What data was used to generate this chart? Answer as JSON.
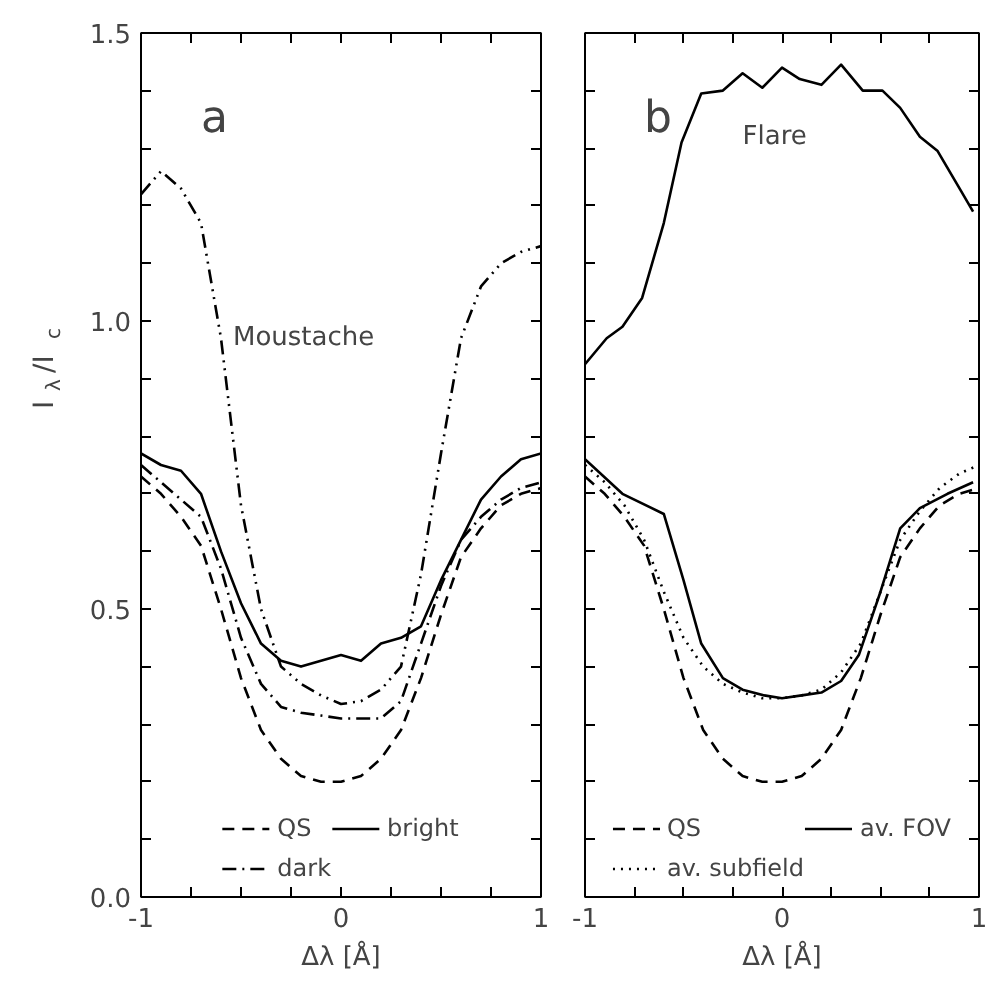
{
  "chart_data": [
    {
      "type": "line",
      "title": "a",
      "xlabel": "Δλ [Å]",
      "ylabel": "I$_{λ}$/I$_{c}$",
      "x": [
        -1,
        -0.9,
        -0.8,
        -0.7,
        -0.6,
        -0.5,
        -0.4,
        -0.3,
        -0.2,
        -0.1,
        0,
        0.1,
        0.2,
        0.3,
        0.4,
        0.5,
        0.6,
        0.7,
        0.8,
        0.9,
        1
      ],
      "xlim": [
        -1,
        1
      ],
      "ylim": [
        0,
        1.5
      ],
      "xticks": [
        -1,
        {
          "value": -0.75,
          "label": null
        },
        {
          "value": -0.5,
          "label": null
        },
        {
          "value": -0.25,
          "label": null
        },
        0,
        {
          "value": 0.25,
          "label": null
        },
        {
          "value": 0.5,
          "label": null
        },
        {
          "value": 0.75,
          "label": null
        },
        1
      ],
      "yticks": [
        {
          "value": 0,
          "label": "0.0"
        },
        {
          "value": 0.1,
          "label": null
        },
        {
          "value": 0.2,
          "label": null
        },
        {
          "value": 0.3,
          "label": null
        },
        {
          "value": 0.4,
          "label": null
        },
        0.5,
        {
          "value": 0.6,
          "label": null
        },
        {
          "value": 0.7,
          "label": null
        },
        {
          "value": 0.8,
          "label": null
        },
        {
          "value": 0.9,
          "label": null
        },
        {
          "value": 1,
          "label": "1.0"
        },
        {
          "value": 1.1,
          "label": null
        },
        {
          "value": 1.2,
          "label": null
        },
        {
          "value": 1.3,
          "label": null
        },
        {
          "value": 1.4,
          "label": null
        },
        1.5
      ],
      "legend": "bottom",
      "grid": false,
      "series": [
        {
          "name": "QS",
          "color": "#000000",
          "line_style": "dashed",
          "values": [
            0.73,
            0.7,
            0.66,
            0.61,
            0.5,
            0.38,
            0.29,
            0.24,
            0.21,
            0.2,
            0.2,
            0.21,
            0.24,
            0.29,
            0.38,
            0.49,
            0.59,
            0.64,
            0.68,
            0.7,
            0.71
          ]
        },
        {
          "name": "bright",
          "color": "#000000",
          "line_style": "solid",
          "values": [
            0.77,
            0.75,
            0.74,
            0.7,
            0.6,
            0.51,
            0.44,
            0.41,
            0.4,
            0.41,
            0.42,
            0.41,
            0.44,
            0.45,
            0.47,
            0.55,
            0.62,
            0.69,
            0.73,
            0.76,
            0.77
          ]
        },
        {
          "name": "dark",
          "color": "#000000",
          "line_style": "dashdot",
          "values": [
            0.75,
            0.72,
            0.69,
            0.66,
            0.57,
            0.45,
            0.37,
            0.33,
            0.32,
            0.315,
            0.31,
            0.31,
            0.31,
            0.34,
            0.44,
            0.54,
            0.62,
            0.66,
            0.69,
            0.71,
            0.72
          ]
        },
        {
          "color": "#000000",
          "line_style": "dashdotdot",
          "values": [
            1.22,
            1.26,
            1.23,
            1.17,
            0.97,
            0.68,
            0.5,
            0.4,
            0.37,
            0.35,
            0.335,
            0.34,
            0.36,
            0.4,
            0.56,
            0.77,
            0.97,
            1.06,
            1.1,
            1.12,
            1.13
          ]
        }
      ],
      "annotations": [
        {
          "text": "Moustache",
          "x": -0.6,
          "y": 0.97
        }
      ]
    },
    {
      "type": "line",
      "title": "b",
      "xlabel": "Δλ [Å]",
      "x": [
        -1,
        -0.9,
        -0.8,
        -0.7,
        -0.6,
        -0.5,
        -0.4,
        -0.3,
        -0.2,
        -0.1,
        0,
        0.1,
        0.2,
        0.3,
        0.4,
        0.5,
        0.6,
        0.7,
        0.8,
        0.9,
        1
      ],
      "xlim": [
        -1,
        1
      ],
      "ylim": [
        0,
        1.5
      ],
      "xticks": [
        -1,
        {
          "value": -0.75,
          "label": null
        },
        {
          "value": -0.5,
          "label": null
        },
        {
          "value": -0.25,
          "label": null
        },
        0,
        {
          "value": 0.25,
          "label": null
        },
        {
          "value": 0.5,
          "label": null
        },
        {
          "value": 0.75,
          "label": null
        },
        1
      ],
      "yticks": [
        0,
        {
          "value": 0.1,
          "label": null
        },
        {
          "value": 0.2,
          "label": null
        },
        {
          "value": 0.3,
          "label": null
        },
        {
          "value": 0.4,
          "label": null
        },
        0.5,
        {
          "value": 0.6,
          "label": null
        },
        {
          "value": 0.7,
          "label": null
        },
        {
          "value": 0.8,
          "label": null
        },
        {
          "value": 0.9,
          "label": null
        },
        1,
        {
          "value": 1.1,
          "label": null
        },
        {
          "value": 1.2,
          "label": null
        },
        {
          "value": 1.3,
          "label": null
        },
        {
          "value": 1.4,
          "label": null
        },
        1.5
      ],
      "tick_labels": "x",
      "legend": "bottom",
      "grid": false,
      "series": [
        {
          "name": "QS",
          "color": "#000000",
          "line_style": "dashed",
          "values": [
            0.73,
            0.7,
            0.66,
            0.61,
            0.5,
            0.38,
            0.29,
            0.24,
            0.21,
            0.2,
            0.2,
            0.21,
            0.24,
            0.29,
            0.38,
            0.49,
            0.59,
            0.64,
            0.68,
            0.7,
            0.71
          ]
        },
        {
          "name": "av. FOV",
          "color": "#000000",
          "line_style": "solid",
          "x": [
            -1,
            -0.81,
            -0.6,
            -0.5,
            -0.41,
            -0.3,
            -0.2,
            -0.09,
            0,
            0.1,
            0.2,
            0.3,
            0.39,
            0.5,
            0.6,
            0.7,
            0.84,
            0.97
          ],
          "values": [
            0.76,
            0.7,
            0.665,
            0.55,
            0.44,
            0.38,
            0.36,
            0.35,
            0.345,
            0.35,
            0.355,
            0.375,
            0.42,
            0.53,
            0.64,
            0.675,
            0.7,
            0.72
          ]
        },
        {
          "name": "av. subfield",
          "color": "#000000",
          "line_style": "dotted",
          "values": [
            0.75,
            0.72,
            0.68,
            0.62,
            0.53,
            0.45,
            0.4,
            0.37,
            0.355,
            0.345,
            0.345,
            0.35,
            0.36,
            0.39,
            0.44,
            0.53,
            0.62,
            0.67,
            0.71,
            0.735,
            0.75
          ]
        },
        {
          "color": "#000000",
          "line_style": "solid",
          "x": [
            -1,
            -0.89,
            -0.81,
            -0.71,
            -0.6,
            -0.51,
            -0.41,
            -0.3,
            -0.2,
            -0.1,
            0,
            0.09,
            0.2,
            0.3,
            0.41,
            0.51,
            0.6,
            0.7,
            0.79,
            0.91,
            0.97
          ],
          "values": [
            0.925,
            0.97,
            0.99,
            1.04,
            1.17,
            1.31,
            1.395,
            1.4,
            1.43,
            1.405,
            1.44,
            1.42,
            1.41,
            1.445,
            1.4,
            1.4,
            1.37,
            1.32,
            1.295,
            1.225,
            1.19
          ]
        }
      ],
      "annotations": [
        "Flare"
      ]
    }
  ]
}
